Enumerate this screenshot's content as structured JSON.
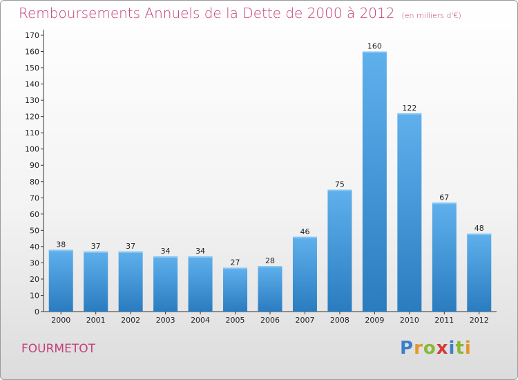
{
  "header": {
    "title": "Remboursements Annuels de la Dette de 2000 à 2012",
    "subtitle": "(en milliers d'€)"
  },
  "footer": {
    "commune": "FOURMETOT",
    "logo_letters": [
      "P",
      "r",
      "o",
      "x",
      "i",
      "t",
      "i"
    ],
    "logo_colors": [
      "#3d7fc8",
      "#e2962b",
      "#8ab833",
      "#d23b3b",
      "#3d7fc8",
      "#8ab833",
      "#e2962b"
    ]
  },
  "chart_data": {
    "type": "bar",
    "categories": [
      "2000",
      "2001",
      "2002",
      "2003",
      "2004",
      "2005",
      "2006",
      "2007",
      "2008",
      "2009",
      "2010",
      "2011",
      "2012"
    ],
    "values": [
      38,
      37,
      37,
      34,
      34,
      27,
      28,
      46,
      75,
      160,
      122,
      67,
      48
    ],
    "title": "Remboursements Annuels de la Dette de 2000 à 2012",
    "ylim": [
      0,
      170
    ],
    "yticks": [
      0,
      10,
      20,
      30,
      40,
      50,
      60,
      70,
      80,
      90,
      100,
      110,
      120,
      130,
      140,
      150,
      160,
      170
    ],
    "grid": false,
    "bar_color": "#4a9fdc",
    "title_color": "#c2417a"
  }
}
